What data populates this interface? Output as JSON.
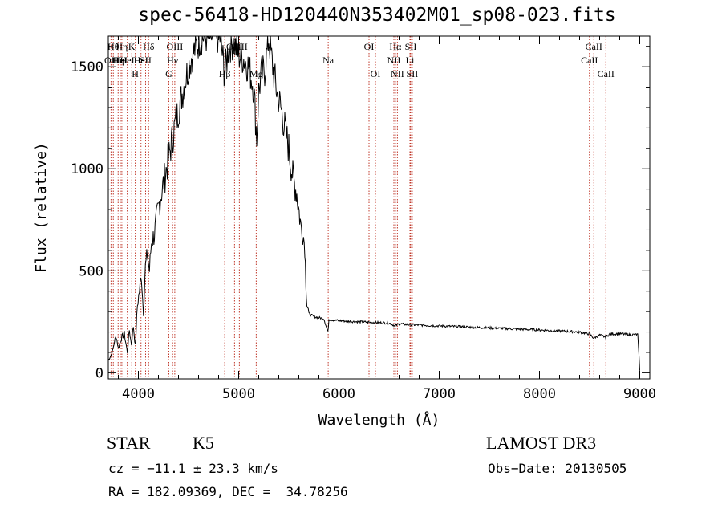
{
  "chart_data": {
    "type": "line",
    "title": "spec-56418-HD120440N353402M01_sp08-023.fits",
    "xlabel": "Wavelength (Å)",
    "ylabel": "Flux (relative)",
    "xlim": [
      3700,
      9100
    ],
    "ylim": [
      -30,
      1650
    ],
    "x_ticks": [
      4000,
      5000,
      6000,
      7000,
      8000,
      9000
    ],
    "y_ticks": [
      0,
      500,
      1000,
      1500
    ],
    "series": [
      {
        "name": "spectrum",
        "x": [
          3700,
          3740,
          3760,
          3780,
          3800,
          3830,
          3860,
          3890,
          3910,
          3930,
          3950,
          3970,
          3990,
          4010,
          4030,
          4050,
          4070,
          4090,
          4110,
          4130,
          4160,
          4190,
          4220,
          4260,
          4300,
          4340,
          4380,
          4420,
          4460,
          4500,
          4540,
          4580,
          4620,
          4660,
          4700,
          4760,
          4820,
          4860,
          4900,
          4950,
          5000,
          5050,
          5100,
          5150,
          5180,
          5200,
          5230,
          5260,
          5300,
          5340,
          5380,
          5420,
          5460,
          5500,
          5540,
          5580,
          5620,
          5640,
          5660,
          5670,
          5680,
          5700,
          5750,
          5800,
          5850,
          5890,
          5900,
          5950,
          6000,
          6100,
          6200,
          6300,
          6400,
          6500,
          6560,
          6600,
          6700,
          6800,
          7000,
          7200,
          7400,
          7600,
          7800,
          8000,
          8200,
          8400,
          8500,
          8540,
          8600,
          8660,
          8700,
          8800,
          8900,
          8980,
          9000
        ],
        "y": [
          60,
          100,
          150,
          180,
          120,
          170,
          190,
          100,
          210,
          140,
          230,
          130,
          330,
          400,
          480,
          300,
          520,
          580,
          500,
          640,
          680,
          780,
          860,
          950,
          1050,
          1150,
          1250,
          1330,
          1420,
          1500,
          1560,
          1600,
          1640,
          1650,
          1640,
          1650,
          1640,
          1460,
          1600,
          1620,
          1560,
          1540,
          1500,
          1400,
          1150,
          1380,
          1470,
          1480,
          1640,
          1500,
          1380,
          1300,
          1200,
          1100,
          960,
          880,
          720,
          690,
          620,
          450,
          340,
          290,
          275,
          270,
          265,
          200,
          262,
          258,
          256,
          252,
          250,
          248,
          246,
          244,
          230,
          240,
          236,
          234,
          230,
          226,
          222,
          218,
          214,
          210,
          205,
          200,
          190,
          170,
          185,
          175,
          190,
          192,
          186,
          188,
          10
        ]
      }
    ],
    "lines": [
      {
        "x": 3727,
        "label": "OII",
        "row": 2
      },
      {
        "x": 3750,
        "label": "Hθ",
        "row": 1
      },
      {
        "x": 3798,
        "label": "Hη",
        "row": 2
      },
      {
        "x": 3820,
        "label": "HeI",
        "row": 2
      },
      {
        "x": 3835,
        "label": "Hη",
        "row": 1
      },
      {
        "x": 3889,
        "label": "HeI",
        "row": 2
      },
      {
        "x": 3934,
        "label": "K",
        "row": 1
      },
      {
        "x": 3969,
        "label": "H",
        "row": 3
      },
      {
        "x": 4026,
        "label": "HeI",
        "row": 2
      },
      {
        "x": 4072,
        "label": "SII",
        "row": 2
      },
      {
        "x": 4102,
        "label": "Hδ",
        "row": 1
      },
      {
        "x": 4304,
        "label": "G",
        "row": 3
      },
      {
        "x": 4341,
        "label": "Hγ",
        "row": 2
      },
      {
        "x": 4363,
        "label": "OIII",
        "row": 1
      },
      {
        "x": 4861,
        "label": "Hβ",
        "row": 3
      },
      {
        "x": 4959,
        "label": "OIII",
        "row": 1
      },
      {
        "x": 5007,
        "label": "OIII",
        "row": 1
      },
      {
        "x": 5175,
        "label": "Mg",
        "row": 3
      },
      {
        "x": 5893,
        "label": "Na",
        "row": 2
      },
      {
        "x": 6300,
        "label": "OI",
        "row": 1
      },
      {
        "x": 6364,
        "label": "OI",
        "row": 3
      },
      {
        "x": 6548,
        "label": "NII",
        "row": 2
      },
      {
        "x": 6563,
        "label": "Hα",
        "row": 1
      },
      {
        "x": 6583,
        "label": "NII",
        "row": 3
      },
      {
        "x": 6708,
        "label": "Li",
        "row": 2
      },
      {
        "x": 6716,
        "label": "SII",
        "row": 1
      },
      {
        "x": 6731,
        "label": "SII",
        "row": 3
      },
      {
        "x": 8498,
        "label": "CaII",
        "row": 2
      },
      {
        "x": 8542,
        "label": "CaII",
        "row": 1
      },
      {
        "x": 8662,
        "label": "CaII",
        "row": 3
      }
    ]
  },
  "info": {
    "class_label": "STAR",
    "subclass": "K5",
    "survey": "LAMOST DR3",
    "cz": "cz = −11.1 ± 23.3 km/s",
    "obs_date": "Obs−Date: 20130505",
    "coords": "RA = 182.09369, DEC =  34.78256"
  }
}
